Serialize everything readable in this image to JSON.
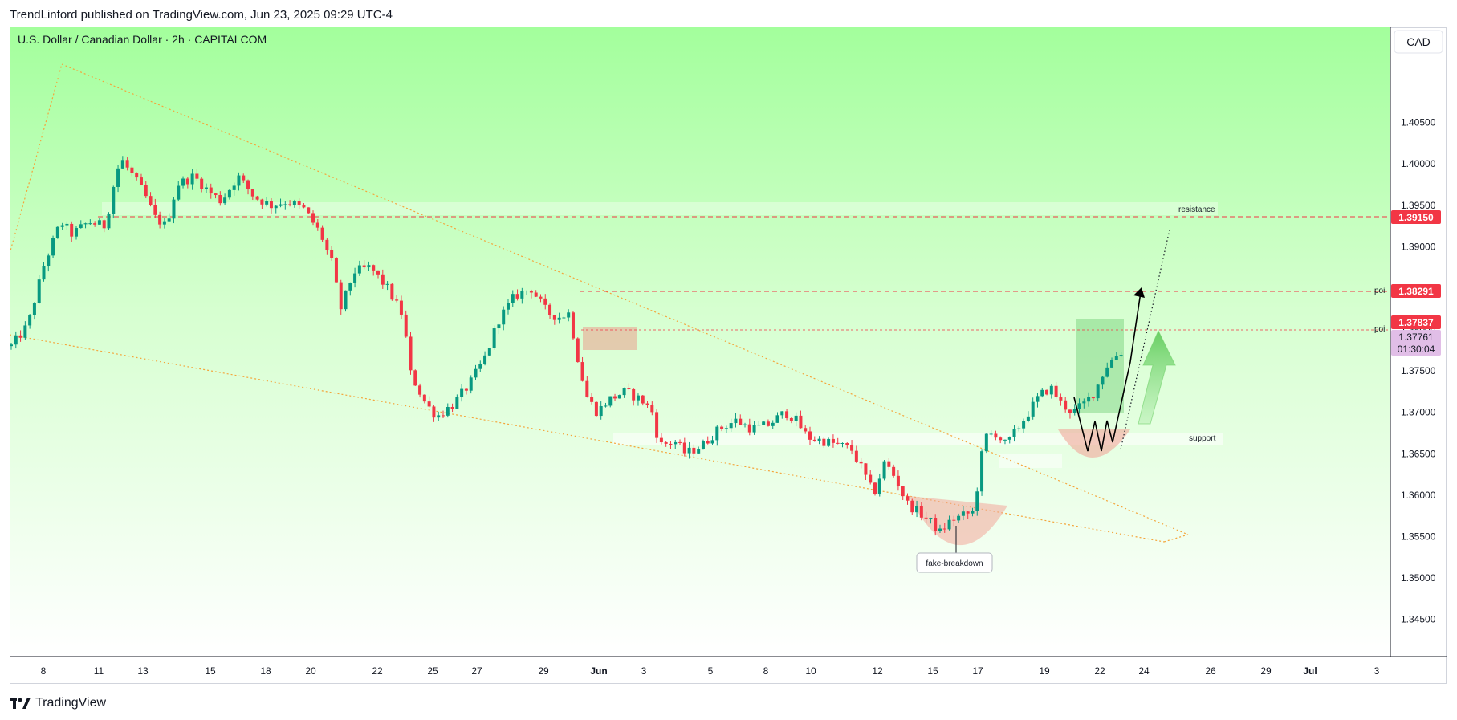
{
  "header": {
    "publisher": "TrendLinford published on TradingView.com, Jun 23, 2025 09:29 UTC-4"
  },
  "footer": {
    "brand": "TradingView"
  },
  "chart_data": {
    "type": "candlestick",
    "title": "U.S. Dollar / Canadian Dollar · 2h · CAPITALCOM",
    "currency": "CAD",
    "y_axis": {
      "ticks": [
        "1.40500",
        "1.40000",
        "1.39500",
        "1.39000",
        "1.38500",
        "1.38000",
        "1.37500",
        "1.37000",
        "1.36500",
        "1.36000",
        "1.35500",
        "1.35000",
        "1.34500"
      ],
      "ylim": [
        1.3405,
        1.4165
      ]
    },
    "x_axis": {
      "ticks": [
        "8",
        "11",
        "13",
        "15",
        "18",
        "20",
        "22",
        "25",
        "27",
        "29",
        "Jun",
        "3",
        "5",
        "8",
        "10",
        "12",
        "15",
        "17",
        "19",
        "22",
        "24",
        "26",
        "29",
        "Jul",
        "3"
      ]
    },
    "price_labels": [
      {
        "value": "1.39150",
        "color": "#f23645"
      },
      {
        "value": "1.38291",
        "color": "#f23645"
      },
      {
        "value": "1.37837",
        "color": "#f23645"
      },
      {
        "value": "1.37761",
        "color": "#e1bee7"
      },
      {
        "value": "01:30:04",
        "color": "#e1bee7"
      }
    ],
    "annotations": {
      "resistance": "resistance",
      "poi_upper": "poi",
      "poi_lower": "poi",
      "support": "support",
      "fake_breakdown": "fake-breakdown"
    },
    "colors": {
      "up": "#089981",
      "down": "#f23645",
      "background_top": "#a5ffa0",
      "background_bottom": "#ffffff",
      "level_line": "#f23645",
      "wedge": "#f4a53b"
    },
    "price_path": [
      [
        0,
        1.378
      ],
      [
        1.5,
        1.3805
      ],
      [
        3,
        1.388
      ],
      [
        4.5,
        1.393
      ],
      [
        5.5,
        1.3915
      ],
      [
        7,
        1.393
      ],
      [
        8.5,
        1.3925
      ],
      [
        9.5,
        1.399
      ],
      [
        10,
        1.4005
      ],
      [
        11,
        1.3985
      ],
      [
        12,
        1.3965
      ],
      [
        13,
        1.3935
      ],
      [
        14,
        1.3925
      ],
      [
        15,
        1.3975
      ],
      [
        16.5,
        1.3985
      ],
      [
        18,
        1.3965
      ],
      [
        19,
        1.3955
      ],
      [
        20.5,
        1.3985
      ],
      [
        22,
        1.396
      ],
      [
        23.5,
        1.395
      ],
      [
        25,
        1.3955
      ],
      [
        26.5,
        1.3945
      ],
      [
        28,
        1.3915
      ],
      [
        29,
        1.388
      ],
      [
        29.8,
        1.3825
      ],
      [
        31,
        1.387
      ],
      [
        32.5,
        1.3875
      ],
      [
        34,
        1.385
      ],
      [
        35.5,
        1.3815
      ],
      [
        36,
        1.375
      ],
      [
        37.5,
        1.371
      ],
      [
        38.5,
        1.3695
      ],
      [
        40,
        1.371
      ],
      [
        41.5,
        1.3735
      ],
      [
        43,
        1.377
      ],
      [
        44,
        1.381
      ],
      [
        45.5,
        1.384
      ],
      [
        47,
        1.385
      ],
      [
        48.5,
        1.382
      ],
      [
        49.5,
        1.3815
      ],
      [
        50.5,
        1.382
      ],
      [
        51,
        1.378
      ],
      [
        52,
        1.372
      ],
      [
        53,
        1.37
      ],
      [
        54,
        1.3715
      ],
      [
        55.5,
        1.3725
      ],
      [
        57,
        1.3715
      ],
      [
        58,
        1.37
      ],
      [
        58.6,
        1.366
      ],
      [
        60,
        1.3665
      ],
      [
        61,
        1.365
      ],
      [
        62.5,
        1.366
      ],
      [
        64,
        1.368
      ],
      [
        65.5,
        1.369
      ],
      [
        67,
        1.368
      ],
      [
        68.5,
        1.3685
      ],
      [
        70,
        1.37
      ],
      [
        71,
        1.369
      ],
      [
        72,
        1.367
      ],
      [
        73.5,
        1.3665
      ],
      [
        75,
        1.366
      ],
      [
        76,
        1.3655
      ],
      [
        77,
        1.363
      ],
      [
        78,
        1.36
      ],
      [
        79,
        1.364
      ],
      [
        80,
        1.362
      ],
      [
        81,
        1.359
      ],
      [
        82,
        1.358
      ],
      [
        83,
        1.357
      ],
      [
        84,
        1.3555
      ],
      [
        85,
        1.357
      ],
      [
        86,
        1.3575
      ],
      [
        87,
        1.358
      ],
      [
        87.5,
        1.362
      ],
      [
        88,
        1.367
      ],
      [
        89,
        1.3675
      ],
      [
        90,
        1.366
      ],
      [
        91,
        1.368
      ],
      [
        92,
        1.37
      ],
      [
        93,
        1.372
      ],
      [
        94,
        1.373
      ],
      [
        95,
        1.371
      ],
      [
        96,
        1.37
      ],
      [
        97,
        1.371
      ],
      [
        98,
        1.3725
      ],
      [
        99,
        1.3755
      ],
      [
        100,
        1.377
      ],
      [
        100.7,
        1.3775
      ]
    ]
  }
}
